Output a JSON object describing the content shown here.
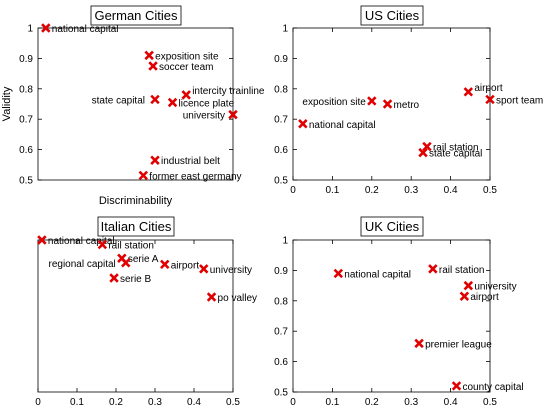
{
  "chart_data": [
    {
      "type": "scatter",
      "title": "German Cities",
      "xlabel": "Discriminability",
      "ylabel": "Validity",
      "xlim": [
        0,
        0.5
      ],
      "ylim": [
        0.5,
        1
      ],
      "xticks": [],
      "yticks": [
        "0.5",
        "0.6",
        "0.7",
        "0.8",
        "0.9",
        "1"
      ],
      "marker_color": "#e00000",
      "points": [
        {
          "label": "national capital",
          "x": 0.02,
          "y": 1.0
        },
        {
          "label": "exposition site",
          "x": 0.285,
          "y": 0.91
        },
        {
          "label": "soccer team",
          "x": 0.295,
          "y": 0.875
        },
        {
          "label": "intercity trainline",
          "x": 0.38,
          "y": 0.78
        },
        {
          "label": "state capital",
          "x": 0.3,
          "y": 0.765
        },
        {
          "label": "licence plate",
          "x": 0.345,
          "y": 0.755
        },
        {
          "label": "university",
          "x": 0.5,
          "y": 0.715
        },
        {
          "label": "industrial belt",
          "x": 0.3,
          "y": 0.565
        },
        {
          "label": "former east germany",
          "x": 0.27,
          "y": 0.515
        }
      ]
    },
    {
      "type": "scatter",
      "title": "US Cities",
      "xlabel": "",
      "ylabel": "",
      "xlim": [
        0,
        0.5
      ],
      "ylim": [
        0.5,
        1
      ],
      "xticks": [
        "0",
        "0.1",
        "0.2",
        "0.3",
        "0.4",
        "0.5"
      ],
      "yticks": [
        "0.5",
        "0.6",
        "0.7",
        "0.8",
        "0.9",
        "1"
      ],
      "marker_color": "#e00000",
      "points": [
        {
          "label": "exposition site",
          "x": 0.2,
          "y": 0.76
        },
        {
          "label": "metro",
          "x": 0.24,
          "y": 0.75
        },
        {
          "label": "airport",
          "x": 0.445,
          "y": 0.79
        },
        {
          "label": "sport team",
          "x": 0.5,
          "y": 0.765
        },
        {
          "label": "national capital",
          "x": 0.025,
          "y": 0.685
        },
        {
          "label": "rail station",
          "x": 0.34,
          "y": 0.61
        },
        {
          "label": "state capital",
          "x": 0.33,
          "y": 0.59
        }
      ]
    },
    {
      "type": "scatter",
      "title": "Italian Cities",
      "xlabel": "",
      "ylabel": "",
      "xlim": [
        0,
        0.5
      ],
      "ylim": [
        0,
        1
      ],
      "xticks": [
        "0",
        "0.1",
        "0.2",
        "0.3",
        "0.4",
        "0.5"
      ],
      "yticks": [],
      "marker_color": "#e00000",
      "points": [
        {
          "label": "national capital",
          "x": 0.01,
          "y": 1.0
        },
        {
          "label": "rail station",
          "x": 0.165,
          "y": 0.97
        },
        {
          "label": "serie A",
          "x": 0.215,
          "y": 0.88
        },
        {
          "label": "regional capital",
          "x": 0.225,
          "y": 0.85
        },
        {
          "label": "airport",
          "x": 0.325,
          "y": 0.84
        },
        {
          "label": "university",
          "x": 0.425,
          "y": 0.81
        },
        {
          "label": "serie B",
          "x": 0.195,
          "y": 0.75
        },
        {
          "label": "po valley",
          "x": 0.445,
          "y": 0.625
        }
      ]
    },
    {
      "type": "scatter",
      "title": "UK Cities",
      "xlabel": "",
      "ylabel": "",
      "xlim": [
        0,
        0.5
      ],
      "ylim": [
        0.5,
        1
      ],
      "xticks": [
        "0",
        "0.1",
        "0.2",
        "0.3",
        "0.4",
        "0.5"
      ],
      "yticks": [
        "0.5",
        "0.6",
        "0.7",
        "0.8",
        "0.9",
        "1"
      ],
      "marker_color": "#e00000",
      "points": [
        {
          "label": "national capital",
          "x": 0.115,
          "y": 0.89
        },
        {
          "label": "rail station",
          "x": 0.355,
          "y": 0.905
        },
        {
          "label": "university",
          "x": 0.445,
          "y": 0.85
        },
        {
          "label": "airport",
          "x": 0.435,
          "y": 0.815
        },
        {
          "label": "premier league",
          "x": 0.32,
          "y": 0.66
        },
        {
          "label": "county capital",
          "x": 0.415,
          "y": 0.52
        }
      ]
    }
  ]
}
